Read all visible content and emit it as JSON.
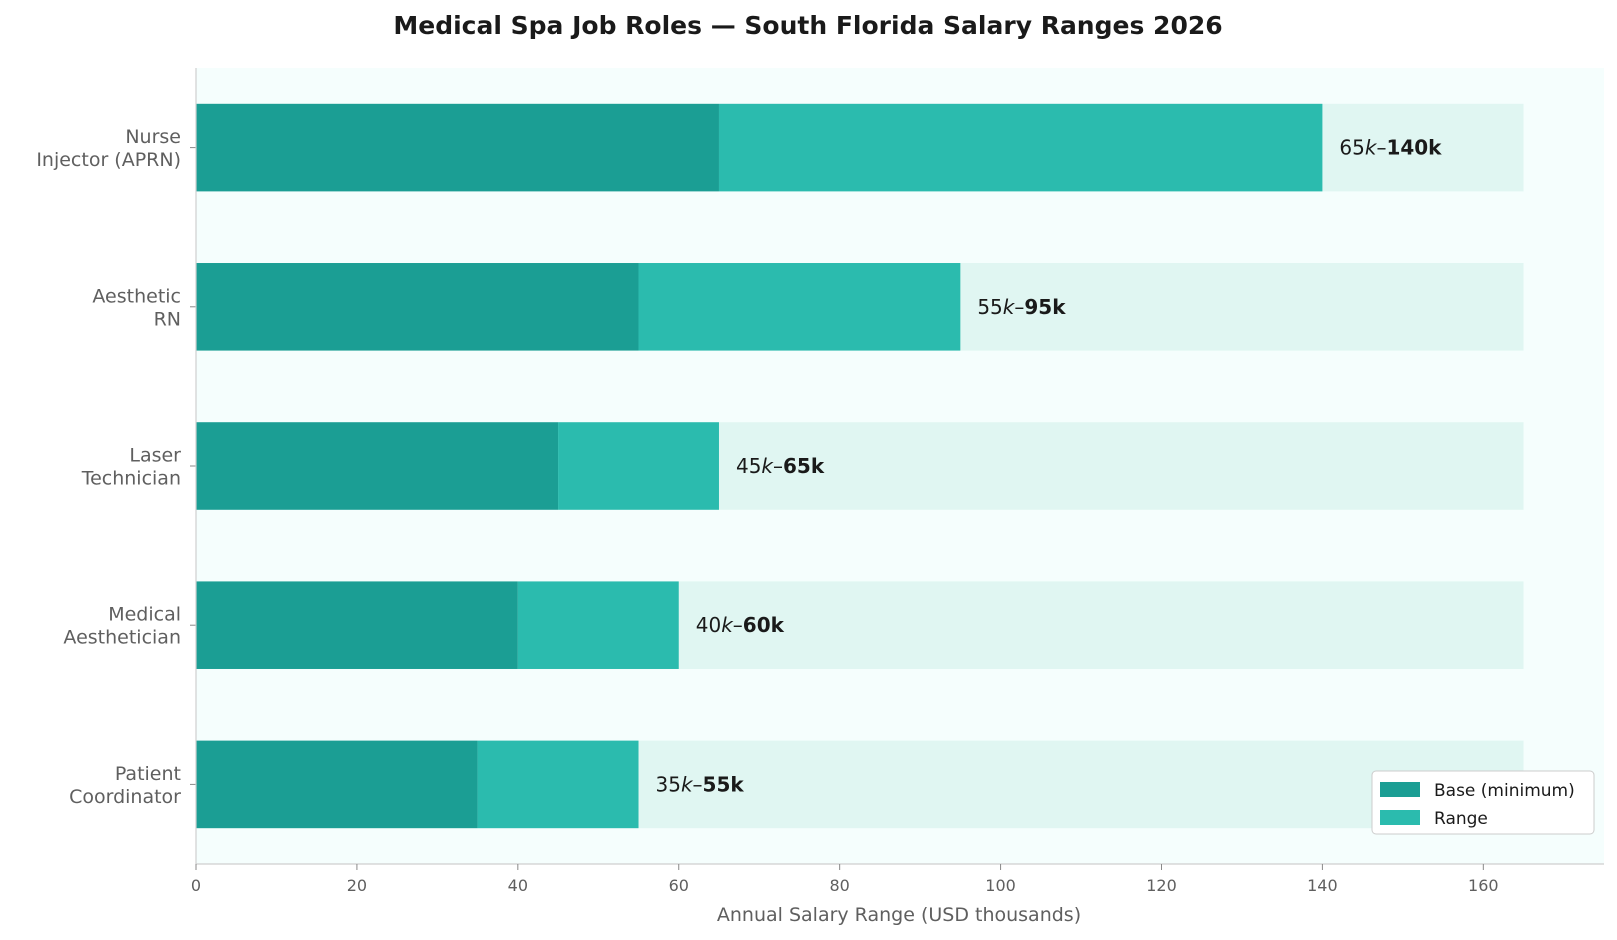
{
  "chart_data": {
    "type": "bar",
    "orientation": "horizontal",
    "stacked": true,
    "title": "Medical Spa Job Roles — South Florida Salary Ranges 2026",
    "xlabel": "Annual Salary Range (USD thousands)",
    "ylabel": "",
    "xlim": [
      0,
      175
    ],
    "x_ticks": [
      0,
      20,
      40,
      60,
      80,
      100,
      120,
      140,
      160
    ],
    "background_max": 165,
    "categories": [
      {
        "label_lines": [
          "Nurse",
          "Injector (APRN)"
        ],
        "min": 65,
        "max": 140,
        "label_min": "65",
        "label_max": "140k"
      },
      {
        "label_lines": [
          "Aesthetic",
          "RN"
        ],
        "min": 55,
        "max": 95,
        "label_min": "55",
        "label_max": "95k"
      },
      {
        "label_lines": [
          "Laser",
          "Technician"
        ],
        "min": 45,
        "max": 65,
        "label_min": "45",
        "label_max": "65k"
      },
      {
        "label_lines": [
          "Medical",
          "Aesthetician"
        ],
        "min": 40,
        "max": 60,
        "label_min": "40",
        "label_max": "60k"
      },
      {
        "label_lines": [
          "Patient",
          "Coordinator"
        ],
        "min": 35,
        "max": 55,
        "label_min": "35",
        "label_max": "55k"
      }
    ],
    "series": [
      {
        "name": "Base (minimum)",
        "color": "#1b9e94"
      },
      {
        "name": "Range",
        "color": "#2bbbae"
      }
    ],
    "background_color": "#e0f6f2",
    "plot_background": "#f5fefd",
    "grid": false,
    "legend_position": "bottom-right"
  }
}
